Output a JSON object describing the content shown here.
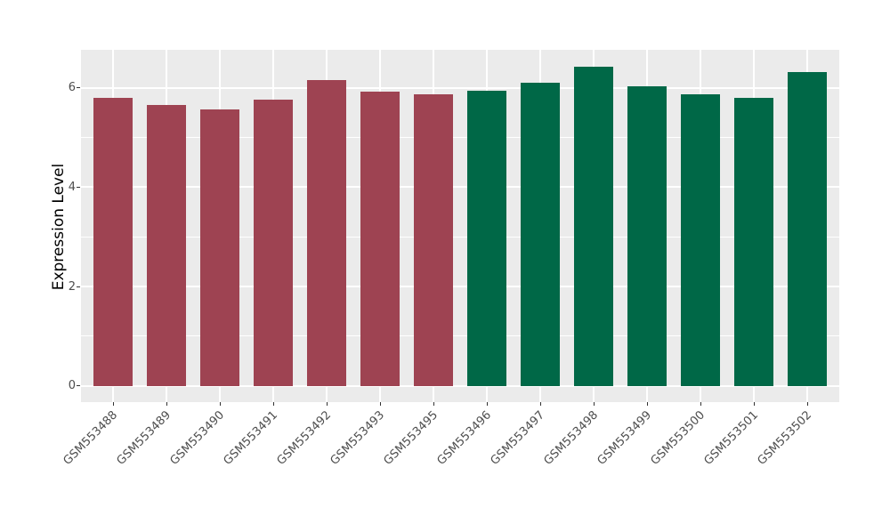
{
  "figure": {
    "background": "#FFFFFF"
  },
  "chart_data": {
    "type": "bar",
    "title": "",
    "xlabel": "",
    "ylabel": "Expression Level",
    "categories": [
      "GSM553488",
      "GSM553489",
      "GSM553490",
      "GSM553491",
      "GSM553492",
      "GSM553493",
      "GSM553495",
      "GSM553496",
      "GSM553497",
      "GSM553498",
      "GSM553499",
      "GSM553500",
      "GSM553501",
      "GSM553502"
    ],
    "values": [
      5.8,
      5.66,
      5.57,
      5.76,
      6.16,
      5.92,
      5.87,
      5.95,
      6.11,
      6.43,
      6.03,
      5.87,
      5.8,
      6.33
    ],
    "bar_colors": [
      "#9E4352",
      "#9E4352",
      "#9E4352",
      "#9E4352",
      "#9E4352",
      "#9E4352",
      "#9E4352",
      "#006847",
      "#006847",
      "#006847",
      "#006847",
      "#006847",
      "#006847",
      "#006847"
    ],
    "group_colors": {
      "group_1": "#9E4352",
      "group_2": "#006847"
    },
    "ylim": [
      -0.33,
      6.77
    ],
    "yticks": [
      0,
      2,
      4,
      6
    ],
    "ytick_labels": [
      "0",
      "2",
      "4",
      "6"
    ],
    "yticks_minor": [
      1,
      3,
      5
    ],
    "x_inner_padding": 0.6,
    "bar_width_ratio": 0.73,
    "x_label_rotation_deg": 45,
    "grid": true,
    "legend": "none",
    "panel_background": "#EBEBEB",
    "grid_color": "#FFFFFF",
    "tick_color": "#333333",
    "axis_text_color": "#4D4D4D"
  }
}
